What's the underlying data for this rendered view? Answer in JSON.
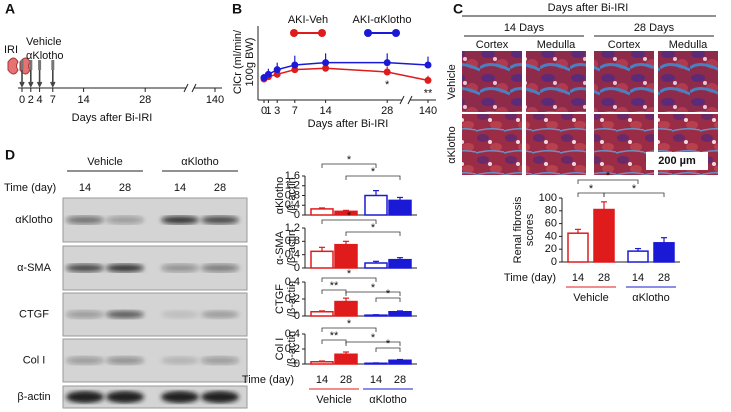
{
  "panel_labels": [
    "A",
    "B",
    "C",
    "D"
  ],
  "timeline": {
    "label": "IRI",
    "treatments": [
      "Vehicle",
      "αKlotho"
    ],
    "injection_days": [
      0,
      2,
      4,
      7
    ],
    "ticks": [
      0,
      2,
      4,
      7,
      14,
      28,
      140
    ],
    "xlabel": "Days after Bi-IRI"
  },
  "micrograph": {
    "title": "Days after Bi-IRI",
    "timepoints": [
      "14 Days",
      "28 Days"
    ],
    "regions": [
      "Cortex",
      "Medulla",
      "Cortex",
      "Medulla"
    ],
    "rows": [
      "Vehicle",
      "αKlotho"
    ],
    "scale_bar": "200 µm"
  },
  "blot": {
    "groups": [
      "Vehicle",
      "αKlotho"
    ],
    "time_label": "Time (day)",
    "lanes": [
      "14",
      "28",
      "14",
      "28"
    ],
    "rows": [
      "αKlotho",
      "α-SMA",
      "CTGF",
      "Col I",
      "β-actin"
    ]
  },
  "chart_data": [
    {
      "type": "line",
      "ylabel": [
        "ClCr (ml/min/",
        "100g BW)"
      ],
      "xlabel": "Days after Bi-IRI",
      "x": [
        0,
        1,
        3,
        7,
        14,
        28,
        140
      ],
      "xticks": [
        0,
        1,
        3,
        7,
        14,
        28,
        140
      ],
      "ylim": [
        0,
        1.5
      ],
      "series": [
        {
          "name": "AKI-Veh",
          "color": "#e01b1b",
          "values": [
            0.45,
            0.5,
            0.55,
            0.65,
            0.68,
            0.6,
            0.42
          ],
          "errors": [
            0.08,
            0.1,
            0.1,
            0.12,
            0.15,
            0.12,
            0.1
          ]
        },
        {
          "name": "AKI-αKlotho",
          "color": "#1a1ad6",
          "values": [
            0.48,
            0.55,
            0.65,
            0.75,
            0.8,
            0.8,
            0.75
          ],
          "errors": [
            0.08,
            0.12,
            0.15,
            0.2,
            0.2,
            0.2,
            0.18
          ]
        }
      ],
      "annotations": [
        {
          "text": "*",
          "x": 28
        },
        {
          "text": "**",
          "x": 140
        }
      ]
    },
    {
      "type": "bar",
      "ylabel": [
        "Renal fibrosis",
        "scores"
      ],
      "xlabel": "Time (day)",
      "categories": [
        "14",
        "28",
        "14",
        "28"
      ],
      "groups": [
        "Vehicle",
        "αKlotho"
      ],
      "values": [
        45,
        82,
        17,
        30
      ],
      "errors": [
        6,
        12,
        4,
        8
      ],
      "colors": [
        "#e01b1b",
        "#e01b1b",
        "#1a1ad6",
        "#1a1ad6"
      ],
      "filled": [
        false,
        true,
        false,
        true
      ],
      "ylim": [
        0,
        100
      ],
      "yticks": [
        0,
        20,
        40,
        60,
        80,
        100
      ],
      "annotations": [
        {
          "text": "*"
        },
        {
          "text": "*"
        },
        {
          "text": "*"
        }
      ]
    },
    {
      "type": "bar",
      "ylabel": [
        "αKlotho",
        "/β-actin"
      ],
      "values": [
        0.25,
        0.15,
        0.8,
        0.6
      ],
      "errors": [
        0.04,
        0.04,
        0.2,
        0.12
      ],
      "colors": [
        "#e01b1b",
        "#e01b1b",
        "#1a1ad6",
        "#1a1ad6"
      ],
      "filled": [
        false,
        true,
        false,
        true
      ],
      "ylim": [
        0,
        1.6
      ],
      "yticks": [
        0,
        0.4,
        0.8,
        1.2,
        1.6
      ],
      "annotations": [
        {
          "text": "*"
        },
        {
          "text": "*"
        }
      ]
    },
    {
      "type": "bar",
      "ylabel": [
        "α-SMA",
        "/β-actin"
      ],
      "values": [
        0.5,
        0.7,
        0.15,
        0.25
      ],
      "errors": [
        0.12,
        0.1,
        0.05,
        0.06
      ],
      "colors": [
        "#e01b1b",
        "#e01b1b",
        "#1a1ad6",
        "#1a1ad6"
      ],
      "filled": [
        false,
        true,
        false,
        true
      ],
      "ylim": [
        0,
        1.2
      ],
      "yticks": [
        0,
        0.4,
        0.8,
        1.2
      ],
      "annotations": [
        {
          "text": "*"
        },
        {
          "text": "*"
        }
      ]
    },
    {
      "type": "bar",
      "ylabel": [
        "CTGF",
        "/β-actin"
      ],
      "values": [
        0.05,
        0.17,
        0.01,
        0.05
      ],
      "errors": [
        0.01,
        0.04,
        0.005,
        0.01
      ],
      "colors": [
        "#e01b1b",
        "#e01b1b",
        "#1a1ad6",
        "#1a1ad6"
      ],
      "filled": [
        false,
        true,
        false,
        true
      ],
      "ylim": [
        0,
        0.4
      ],
      "yticks": [
        0,
        0.2,
        0.4
      ],
      "annotations": [
        {
          "text": "*"
        },
        {
          "text": "**"
        },
        {
          "text": "*"
        },
        {
          "text": "*"
        }
      ]
    },
    {
      "type": "bar",
      "ylabel": [
        "Col I",
        "/β-actin"
      ],
      "xlabel": "Time (day)",
      "categories": [
        "14",
        "28",
        "14",
        "28"
      ],
      "groups": [
        "Vehicle",
        "αKlotho"
      ],
      "values": [
        0.03,
        0.13,
        0.01,
        0.05
      ],
      "errors": [
        0.01,
        0.03,
        0.005,
        0.01
      ],
      "colors": [
        "#e01b1b",
        "#e01b1b",
        "#1a1ad6",
        "#1a1ad6"
      ],
      "filled": [
        false,
        true,
        false,
        true
      ],
      "ylim": [
        0,
        0.4
      ],
      "yticks": [
        0,
        0.2,
        0.4
      ],
      "annotations": [
        {
          "text": "*"
        },
        {
          "text": "**"
        },
        {
          "text": "*"
        },
        {
          "text": "*"
        }
      ]
    }
  ]
}
